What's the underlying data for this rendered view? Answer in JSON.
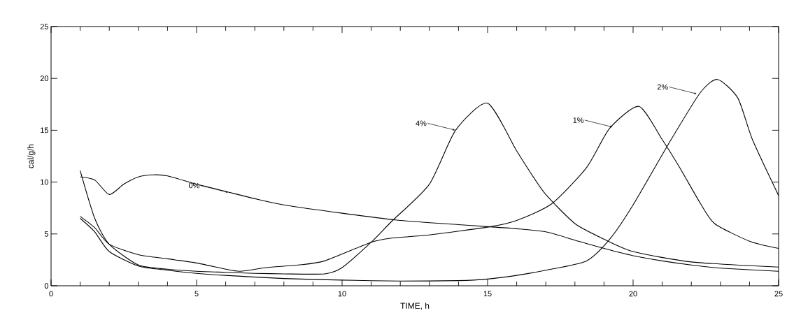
{
  "chart_data": {
    "type": "line",
    "xlabel": "TIME, h",
    "ylabel": "cal/g/h",
    "xlim": [
      0,
      25
    ],
    "ylim": [
      0,
      25
    ],
    "xticks": [
      0,
      5,
      10,
      15,
      20,
      25
    ],
    "yticks": [
      0,
      5,
      10,
      15,
      20,
      25
    ],
    "grid": false,
    "marker": "none",
    "line_style": "solid",
    "series": [
      {
        "color": "#000000",
        "x": [
          1,
          1.5,
          2,
          2.5,
          3,
          3.5,
          4,
          5,
          6,
          7,
          8,
          10,
          12,
          14,
          15,
          16,
          17,
          18,
          19,
          20,
          21,
          22,
          23,
          25
        ],
        "values": [
          10.5,
          10.2,
          8.8,
          9.8,
          10.5,
          10.7,
          10.6,
          9.8,
          9.1,
          8.4,
          7.8,
          7.0,
          6.3,
          5.9,
          5.7,
          5.5,
          5.2,
          4.4,
          3.6,
          2.9,
          2.4,
          2.0,
          1.7,
          1.4
        ]
      },
      {
        "color": "#000000",
        "x": [
          1,
          1.5,
          2,
          3,
          4,
          5,
          6,
          6.5,
          7.4,
          8.5,
          9.4,
          11,
          11.7,
          13,
          15.1,
          16,
          17.2,
          18.4,
          19.2,
          20.2,
          21,
          21.6,
          22.3,
          22.8,
          24,
          25
        ],
        "values": [
          6.7,
          5.6,
          4.0,
          3.0,
          2.6,
          2.2,
          1.6,
          1.4,
          1.75,
          2.0,
          2.4,
          4.2,
          4.6,
          4.9,
          5.7,
          6.3,
          7.9,
          11.4,
          15.2,
          17.3,
          14.1,
          11.4,
          8.0,
          6.0,
          4.3,
          3.6
        ]
      },
      {
        "color": "#000000",
        "x": [
          1,
          1.5,
          2,
          3,
          4,
          5,
          6,
          8,
          10,
          12,
          14,
          15,
          16,
          17,
          18.4,
          19.2,
          20,
          21.2,
          22.3,
          22.9,
          23.6,
          24.1,
          25
        ],
        "values": [
          6.5,
          5.2,
          3.3,
          1.9,
          1.5,
          1.2,
          1.0,
          0.7,
          0.55,
          0.45,
          0.5,
          0.65,
          1.0,
          1.5,
          2.4,
          4.5,
          7.8,
          13.6,
          18.6,
          19.9,
          18.1,
          14.1,
          8.7
        ]
      },
      {
        "color": "#000000",
        "x": [
          1,
          1.5,
          2,
          3,
          4,
          5,
          6,
          7,
          8,
          9.4,
          10,
          11,
          11.7,
          13,
          13.9,
          15,
          16,
          16.5,
          17,
          18,
          19,
          20,
          22,
          25
        ],
        "values": [
          11.1,
          6.5,
          4.0,
          2.0,
          1.6,
          1.4,
          1.3,
          1.2,
          1.15,
          1.15,
          1.75,
          4.2,
          6.2,
          9.8,
          15.0,
          17.6,
          13.0,
          10.8,
          8.8,
          6.0,
          4.5,
          3.3,
          2.3,
          1.8
        ]
      }
    ],
    "annotations": [
      {
        "text": "0%",
        "x": 6.1,
        "y": 9.0
      },
      {
        "text": "4%",
        "x": 13.9,
        "y": 15.0
      },
      {
        "text": "1%",
        "x": 19.3,
        "y": 15.3
      },
      {
        "text": "2%",
        "x": 22.2,
        "y": 18.5
      }
    ]
  }
}
